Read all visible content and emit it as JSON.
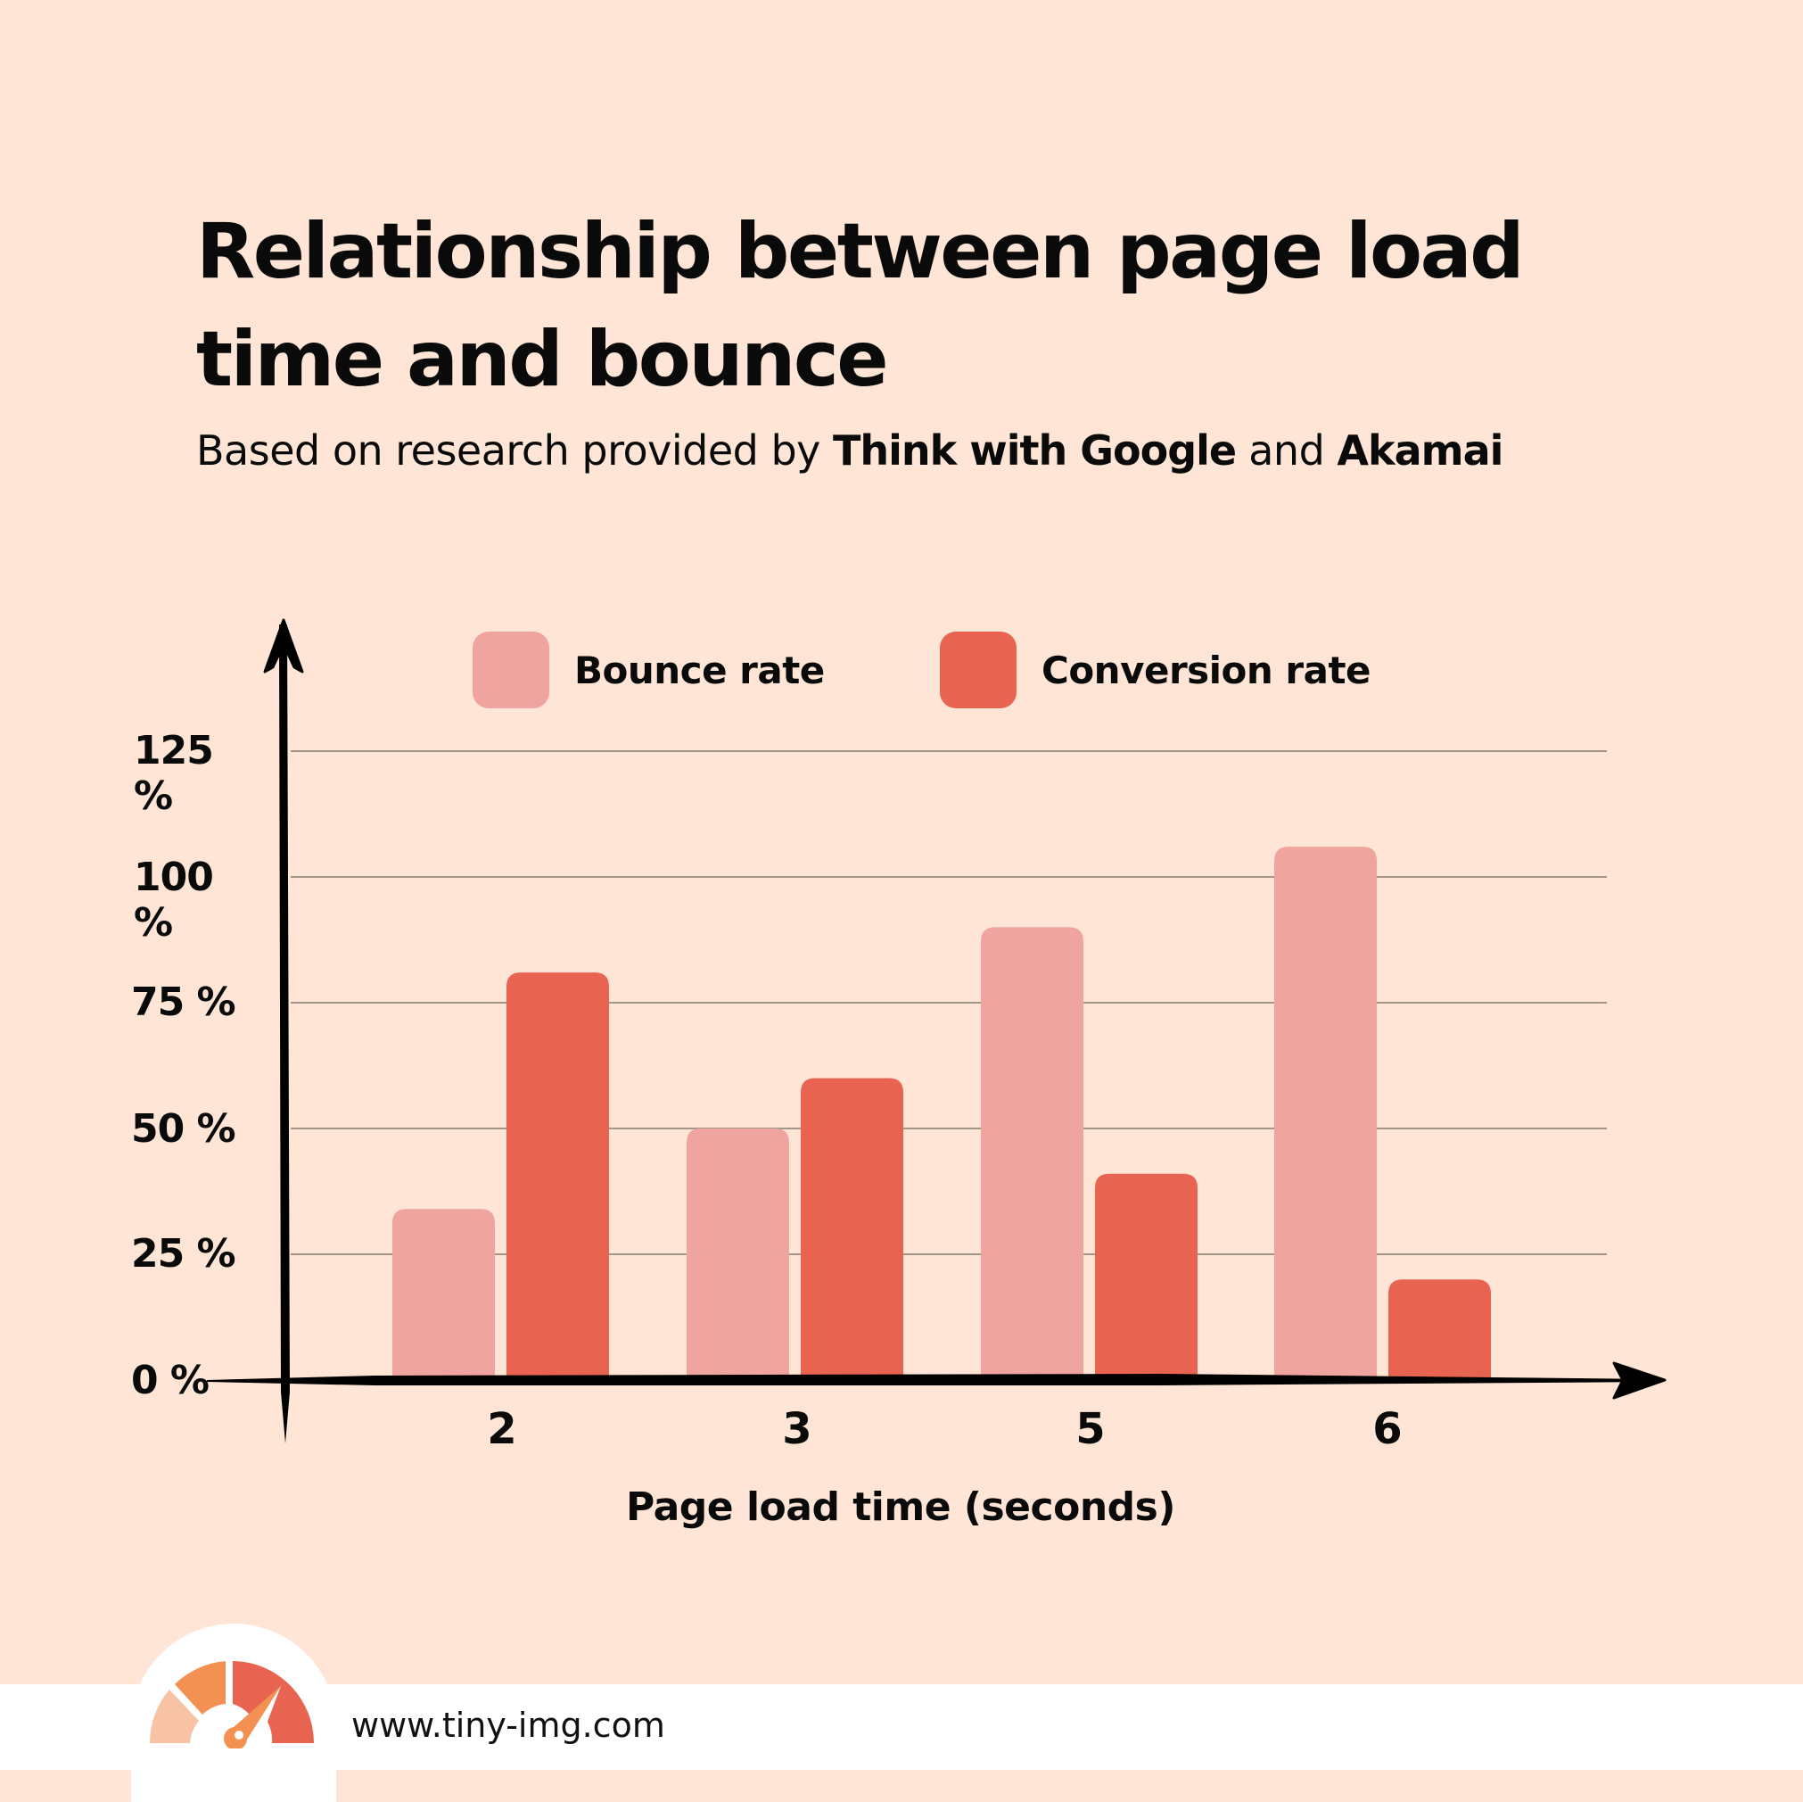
{
  "header": {
    "title": "Relationship between page load time and bounce",
    "subtitle_parts": {
      "p1": "Based on research provided by ",
      "s1": "Think with Google",
      "p2": " and ",
      "s2": "Akamai"
    }
  },
  "legend": {
    "items": [
      {
        "label": "Bounce rate",
        "color": "#F0A49F"
      },
      {
        "label": "Conversion rate",
        "color": "#E96450"
      }
    ]
  },
  "axes": {
    "y_ticks": [
      "125 %",
      "100 %",
      "75 %",
      "50 %",
      "25 %",
      "0 %"
    ],
    "x_ticks": [
      "2",
      "3",
      "5",
      "6"
    ],
    "x_title": "Page load time (seconds)"
  },
  "colors": {
    "background": "#FEE5D5",
    "bounce": "#F0A49F",
    "conversion": "#E96450",
    "gridline": "#A39689",
    "axis": "#000000",
    "footer": "#FFFFFF"
  },
  "footer": {
    "url": "www.tiny-img.com",
    "logo_icon": "speedometer-gauge-icon"
  },
  "chart_data": {
    "type": "bar",
    "title": "Relationship between page load time and bounce",
    "subtitle": "Based on research provided by Think with Google and Akamai",
    "categories": [
      "2",
      "3",
      "5",
      "6"
    ],
    "series": [
      {
        "name": "Bounce rate",
        "color": "#F0A49F",
        "values": [
          34,
          50,
          90,
          106
        ]
      },
      {
        "name": "Conversion rate",
        "color": "#E96450",
        "values": [
          81,
          60,
          41,
          20
        ]
      }
    ],
    "xlabel": "Page load time (seconds)",
    "ylabel": "",
    "ylim": [
      0,
      125
    ],
    "y_ticks": [
      0,
      25,
      50,
      75,
      100,
      125
    ],
    "y_tick_format": "N %",
    "grid": true,
    "legend_position": "top"
  }
}
